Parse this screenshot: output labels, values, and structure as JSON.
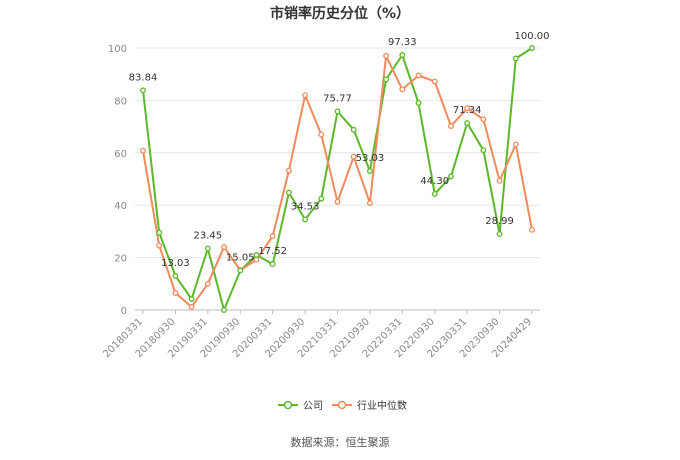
{
  "chart_data": {
    "type": "line",
    "title": "市销率历史分位（%）",
    "xlabel": "",
    "ylabel": "",
    "ylim": [
      0,
      100
    ],
    "yticks": [
      0,
      20,
      40,
      60,
      80,
      100
    ],
    "grid": true,
    "x_tick_labels": [
      "20180331",
      "20180930",
      "20190331",
      "20190930",
      "20200331",
      "20200930",
      "20210331",
      "20210930",
      "20220331",
      "20220930",
      "20230331",
      "20230930",
      "20240429"
    ],
    "series": [
      {
        "name": "公司",
        "color": "#5cb82a",
        "values": [
          83.84,
          29.5,
          13.03,
          4.2,
          23.45,
          0.0,
          15.05,
          21.0,
          17.52,
          44.8,
          34.53,
          42.5,
          75.77,
          68.8,
          53.03,
          88.0,
          97.33,
          79.0,
          44.3,
          51.0,
          71.34,
          61.0,
          28.99,
          96.0,
          100.0
        ]
      },
      {
        "name": "行业中位数",
        "color": "#f28a5a",
        "values": [
          60.8,
          24.6,
          6.5,
          1.2,
          10.0,
          24.0,
          15.2,
          19.2,
          28.2,
          53.2,
          82.0,
          67.0,
          41.3,
          58.5,
          40.8,
          97.0,
          84.2,
          89.5,
          87.2,
          70.2,
          77.0,
          72.8,
          49.3,
          63.2,
          30.6
        ]
      }
    ],
    "data_labels": [
      {
        "series": 0,
        "index": 0,
        "text": "83.84"
      },
      {
        "series": 0,
        "index": 2,
        "text": "13.03"
      },
      {
        "series": 0,
        "index": 4,
        "text": "23.45"
      },
      {
        "series": 0,
        "index": 6,
        "text": "15.05"
      },
      {
        "series": 0,
        "index": 8,
        "text": "17.52"
      },
      {
        "series": 0,
        "index": 10,
        "text": "34.53"
      },
      {
        "series": 0,
        "index": 12,
        "text": "75.77"
      },
      {
        "series": 0,
        "index": 14,
        "text": "53.03"
      },
      {
        "series": 0,
        "index": 16,
        "text": "97.33"
      },
      {
        "series": 0,
        "index": 18,
        "text": "44.30"
      },
      {
        "series": 0,
        "index": 20,
        "text": "71.34"
      },
      {
        "series": 0,
        "index": 22,
        "text": "28.99"
      },
      {
        "series": 0,
        "index": 24,
        "text": "100.00"
      }
    ],
    "legend_placement": "bottom-center"
  },
  "source": "数据来源：恒生聚源"
}
